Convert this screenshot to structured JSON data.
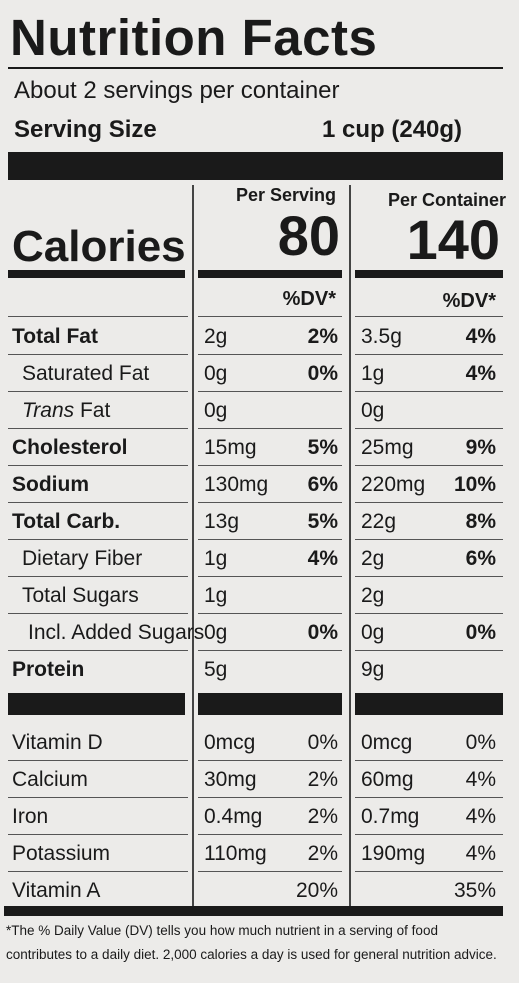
{
  "title": "Nutrition Facts",
  "servings_per_container": "About 2 servings per container",
  "serving_size_label": "Serving Size",
  "serving_size_value": "1 cup (240g)",
  "per_serving_label": "Per Serving",
  "per_container_label": "Per Container",
  "calories_label": "Calories",
  "calories_serving": "80",
  "calories_container": "140",
  "dv_label": "%DV*",
  "nutrients": [
    {
      "name": "Total Fat",
      "bold": true,
      "indent": 0,
      "italic_prefix": "",
      "s_amt": "2g",
      "s_dv": "2%",
      "c_amt": "3.5g",
      "c_dv": "4%"
    },
    {
      "name": "Saturated Fat",
      "bold": false,
      "indent": 1,
      "italic_prefix": "",
      "s_amt": "0g",
      "s_dv": "0%",
      "c_amt": "1g",
      "c_dv": "4%"
    },
    {
      "name": " Fat",
      "bold": false,
      "indent": 1,
      "italic_prefix": "Trans",
      "s_amt": "0g",
      "s_dv": "",
      "c_amt": "0g",
      "c_dv": ""
    },
    {
      "name": "Cholesterol",
      "bold": true,
      "indent": 0,
      "italic_prefix": "",
      "s_amt": "15mg",
      "s_dv": "5%",
      "c_amt": "25mg",
      "c_dv": "9%"
    },
    {
      "name": "Sodium",
      "bold": true,
      "indent": 0,
      "italic_prefix": "",
      "s_amt": "130mg",
      "s_dv": "6%",
      "c_amt": "220mg",
      "c_dv": "10%"
    },
    {
      "name": "Total Carb.",
      "bold": true,
      "indent": 0,
      "italic_prefix": "",
      "s_amt": "13g",
      "s_dv": "5%",
      "c_amt": "22g",
      "c_dv": "8%"
    },
    {
      "name": "Dietary Fiber",
      "bold": false,
      "indent": 1,
      "italic_prefix": "",
      "s_amt": "1g",
      "s_dv": "4%",
      "c_amt": "2g",
      "c_dv": "6%"
    },
    {
      "name": "Total Sugars",
      "bold": false,
      "indent": 1,
      "italic_prefix": "",
      "s_amt": "1g",
      "s_dv": "",
      "c_amt": "2g",
      "c_dv": ""
    },
    {
      "name": "Incl. Added Sugars",
      "bold": false,
      "indent": 2,
      "italic_prefix": "",
      "s_amt": "0g",
      "s_dv": "0%",
      "c_amt": "0g",
      "c_dv": "0%"
    },
    {
      "name": "Protein",
      "bold": true,
      "indent": 0,
      "italic_prefix": "",
      "s_amt": "5g",
      "s_dv": "",
      "c_amt": "9g",
      "c_dv": ""
    }
  ],
  "vitamins": [
    {
      "name": "Vitamin D",
      "s_amt": "0mcg",
      "s_dv": "0%",
      "c_amt": "0mcg",
      "c_dv": "0%"
    },
    {
      "name": "Calcium",
      "s_amt": "30mg",
      "s_dv": "2%",
      "c_amt": "60mg",
      "c_dv": "4%"
    },
    {
      "name": "Iron",
      "s_amt": "0.4mg",
      "s_dv": "2%",
      "c_amt": "0.7mg",
      "c_dv": "4%"
    },
    {
      "name": "Potassium",
      "s_amt": "110mg",
      "s_dv": "2%",
      "c_amt": "190mg",
      "c_dv": "4%"
    },
    {
      "name": "Vitamin A",
      "s_amt": "",
      "s_dv": "20%",
      "c_amt": "",
      "c_dv": "35%"
    }
  ],
  "footnote_line1": "*The % Daily Value (DV) tells you how much nutrient in a serving of food",
  "footnote_line2": "contributes to a daily diet. 2,000 calories a day is used for general nutrition advice."
}
